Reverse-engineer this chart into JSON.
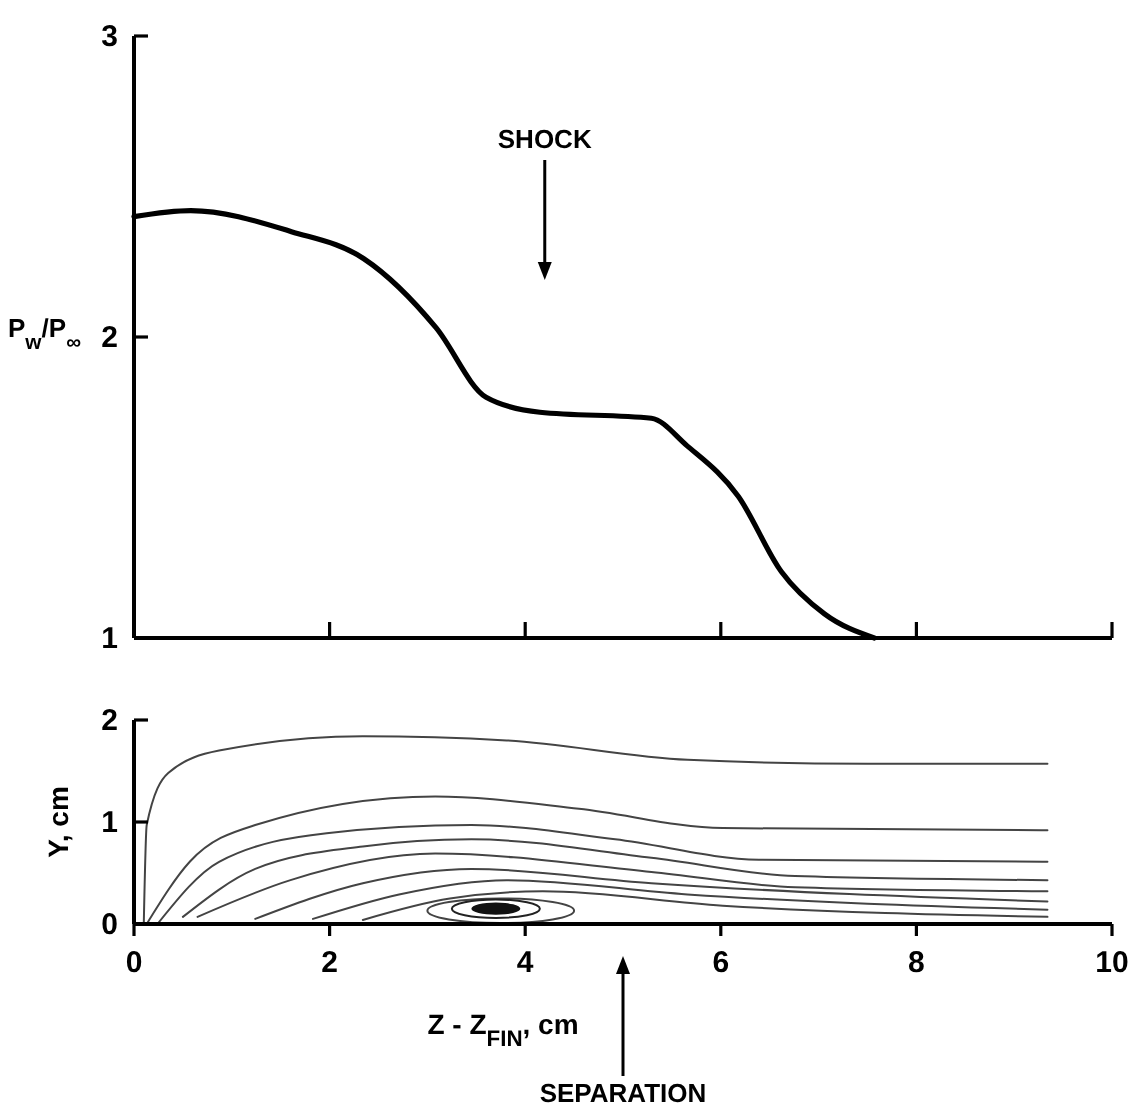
{
  "chart_data": [
    {
      "type": "line",
      "ylabel": "P$_{w}$/P$_{∞}$",
      "xlim": [
        0,
        10
      ],
      "ylim": [
        1,
        3
      ],
      "xticks": [
        {
          "value": 0,
          "label": null
        },
        {
          "value": 2,
          "label": null
        },
        {
          "value": 4,
          "label": null
        },
        {
          "value": 6,
          "label": null
        },
        {
          "value": 8,
          "label": null
        },
        {
          "value": 10,
          "label": null
        }
      ],
      "yticks": [
        1,
        2,
        3
      ],
      "tick_labels": "y",
      "grid": false,
      "annotations": [
        "SHOCK"
      ],
      "series": [
        {
          "color": "#000000",
          "x": [
            0,
            0.58,
            1.61,
            2.35,
            3.09,
            3.6,
            4.15,
            5.29,
            5.65,
            6.18,
            6.62,
            7.06,
            7.57
          ],
          "values": [
            2.4,
            2.42,
            2.35,
            2.26,
            2.03,
            1.8,
            1.75,
            1.73,
            1.64,
            1.47,
            1.22,
            1.08,
            1.0
          ]
        }
      ]
    },
    {
      "type": "line",
      "xlabel": "Z - Z$_{FIN}$, cm",
      "ylabel": "Y, cm",
      "xlim": [
        0,
        10
      ],
      "ylim": [
        0,
        2
      ],
      "xticks": [
        0,
        2,
        4,
        6,
        8,
        10
      ],
      "yticks": [
        0,
        1,
        2
      ],
      "grid": false,
      "annotations": [
        "SEPARATION"
      ],
      "series": [
        {
          "color": "#444444",
          "x": [
            0.1,
            0.13,
            0.35,
            0.87,
            2.34,
            3.81,
            5.66,
            7.5,
            9.34
          ],
          "values": [
            0,
            0.97,
            1.48,
            1.7,
            1.84,
            1.8,
            1.61,
            1.57,
            1.57
          ]
        },
        {
          "color": "#444444",
          "x": [
            0.13,
            0.57,
            1.24,
            3.08,
            4.55,
            6.02,
            9.34
          ],
          "values": [
            0,
            0.61,
            0.97,
            1.25,
            1.13,
            0.94,
            0.92
          ]
        },
        {
          "color": "#444444",
          "x": [
            0.24,
            0.87,
            1.97,
            3.45,
            4.92,
            6.39,
            9.34
          ],
          "values": [
            0,
            0.61,
            0.89,
            0.97,
            0.83,
            0.63,
            0.61
          ]
        },
        {
          "color": "#444444",
          "x": [
            0.5,
            1.24,
            2.34,
            3.45,
            5.29,
            6.76,
            9.34
          ],
          "values": [
            0.07,
            0.54,
            0.76,
            0.83,
            0.65,
            0.47,
            0.43
          ]
        },
        {
          "color": "#444444",
          "x": [
            0.65,
            1.6,
            3.08,
            5.29,
            6.76,
            9.34
          ],
          "values": [
            0.07,
            0.43,
            0.69,
            0.51,
            0.36,
            0.32
          ]
        },
        {
          "color": "#444444",
          "x": [
            1.24,
            2.34,
            3.45,
            5.29,
            9.34
          ],
          "values": [
            0.05,
            0.4,
            0.54,
            0.4,
            0.22
          ]
        },
        {
          "color": "#444444",
          "x": [
            1.83,
            2.71,
            3.81,
            5.66,
            9.34
          ],
          "values": [
            0.05,
            0.29,
            0.43,
            0.29,
            0.14
          ]
        },
        {
          "color": "#444444",
          "x": [
            2.34,
            3.23,
            4.18,
            6.02,
            9.34
          ],
          "values": [
            0.04,
            0.25,
            0.32,
            0.18,
            0.07
          ]
        }
      ]
    }
  ]
}
